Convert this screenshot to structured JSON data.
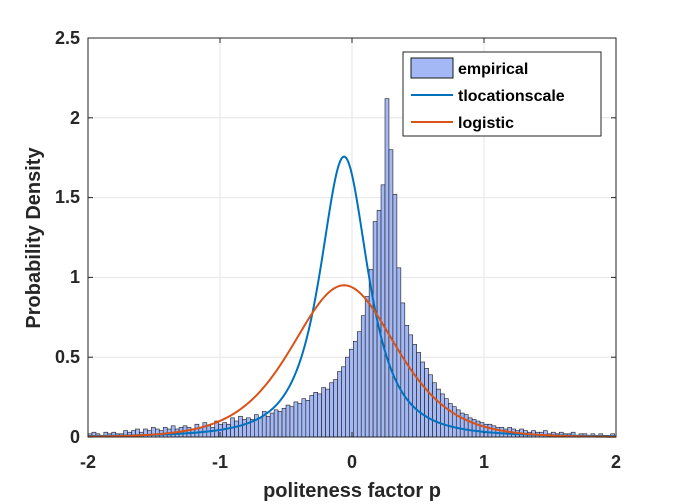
{
  "chart_data": {
    "type": "bar",
    "title": "",
    "xlabel": "politeness factor p",
    "ylabel": "Probability Density",
    "xlim": [
      -2,
      2
    ],
    "ylim": [
      0,
      2.5
    ],
    "xticks": [
      -2,
      -1,
      0,
      1,
      2
    ],
    "xtick_labels": [
      "-2",
      "-1",
      "0",
      "1",
      "2"
    ],
    "yticks": [
      0,
      0.5,
      1,
      1.5,
      2,
      2.5
    ],
    "ytick_labels": [
      "0",
      "0.5",
      "1",
      "1.5",
      "2",
      "2.5"
    ],
    "grid": true,
    "legend_position": "top-right",
    "histogram": {
      "name": "empirical",
      "bin_width": 0.03,
      "bin_start": -2.0,
      "color": "#a3b8f5",
      "edge_color": "#1a1a1a",
      "heights": [
        0.02,
        0.03,
        0.02,
        0.01,
        0.03,
        0.02,
        0.03,
        0.02,
        0.02,
        0.04,
        0.03,
        0.04,
        0.05,
        0.03,
        0.05,
        0.04,
        0.06,
        0.05,
        0.04,
        0.06,
        0.05,
        0.07,
        0.05,
        0.06,
        0.07,
        0.06,
        0.05,
        0.08,
        0.06,
        0.09,
        0.07,
        0.06,
        0.1,
        0.08,
        0.09,
        0.08,
        0.12,
        0.1,
        0.13,
        0.11,
        0.12,
        0.11,
        0.14,
        0.12,
        0.16,
        0.13,
        0.15,
        0.17,
        0.16,
        0.18,
        0.2,
        0.19,
        0.22,
        0.21,
        0.24,
        0.23,
        0.26,
        0.28,
        0.27,
        0.31,
        0.3,
        0.34,
        0.36,
        0.41,
        0.44,
        0.5,
        0.55,
        0.6,
        0.66,
        0.76,
        0.88,
        1.05,
        1.35,
        1.42,
        1.58,
        2.12,
        1.8,
        1.52,
        1.06,
        0.84,
        0.7,
        0.64,
        0.58,
        0.53,
        0.47,
        0.43,
        0.39,
        0.34,
        0.3,
        0.27,
        0.24,
        0.21,
        0.19,
        0.17,
        0.15,
        0.14,
        0.12,
        0.11,
        0.1,
        0.09,
        0.08,
        0.08,
        0.07,
        0.06,
        0.06,
        0.05,
        0.06,
        0.05,
        0.04,
        0.05,
        0.04,
        0.03,
        0.04,
        0.03,
        0.03,
        0.04,
        0.02,
        0.03,
        0.02,
        0.03,
        0.02,
        0.02,
        0.03,
        0.01,
        0.02,
        0.02,
        0.01,
        0.02,
        0.01,
        0.02,
        0.01,
        0.01,
        0.02,
        0.01
      ]
    },
    "series": [
      {
        "name": "tlocationscale",
        "type": "line",
        "color": "#0072bd",
        "distribution": "t-location-scale",
        "mu": -0.06,
        "sigma": 0.2,
        "nu": 1.9
      },
      {
        "name": "logistic",
        "type": "line",
        "color": "#d95319",
        "distribution": "logistic",
        "mu": -0.06,
        "s": 0.263
      }
    ],
    "legend": [
      "empirical",
      "tlocationscale",
      "logistic"
    ]
  }
}
